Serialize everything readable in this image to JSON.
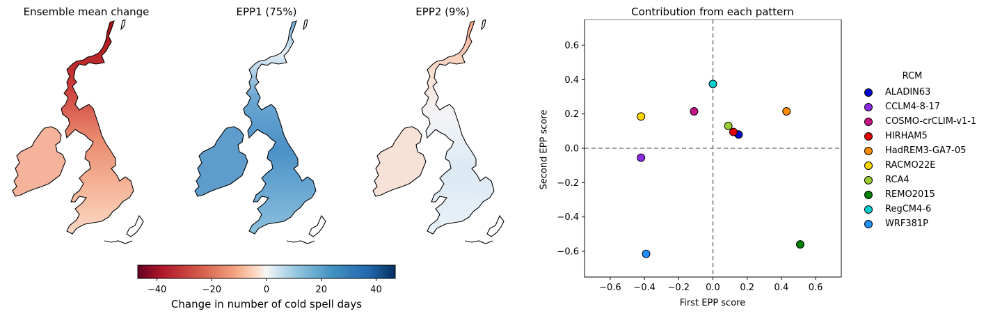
{
  "maps": [
    {
      "title": "Ensemble mean change",
      "field": "warm"
    },
    {
      "title": "EPP1 (75%)",
      "field": "blue"
    },
    {
      "title": "EPP2 (9%)",
      "field": "faint"
    }
  ],
  "colorbar": {
    "label": "Change in number of cold spell days",
    "range": [
      -47,
      47
    ],
    "ticks": [
      "−40",
      "−20",
      "0",
      "20",
      "40"
    ],
    "tick_values": [
      -40,
      -20,
      0,
      20,
      40
    ],
    "colormap": "RdBu"
  },
  "chart_data": {
    "type": "scatter",
    "title": "Contribution from each pattern",
    "xlabel": "First EPP score",
    "ylabel": "Second EPP score",
    "xlim": [
      -0.75,
      0.75
    ],
    "ylim": [
      -0.75,
      0.75
    ],
    "xticks": [
      -0.6,
      -0.4,
      -0.2,
      0.0,
      0.2,
      0.4,
      0.6
    ],
    "xtick_labels": [
      "−0.6",
      "−0.4",
      "−0.2",
      "0.0",
      "0.2",
      "0.4",
      "0.6"
    ],
    "yticks": [
      -0.6,
      -0.4,
      -0.2,
      0.0,
      0.2,
      0.4,
      0.6
    ],
    "ytick_labels": [
      "−0.6",
      "−0.4",
      "−0.2",
      "0.0",
      "0.2",
      "0.4",
      "0.6"
    ],
    "reference_lines": {
      "x": 0,
      "y": 0,
      "style": "dashed",
      "color": "#808080"
    },
    "legend": {
      "title": "RCM",
      "placement": "right outside"
    },
    "series": [
      {
        "name": "ALADIN63",
        "color": "#0000cd",
        "x": 0.15,
        "y": 0.08
      },
      {
        "name": "CCLM4-8-17",
        "color": "#8a2be2",
        "x": -0.42,
        "y": -0.055
      },
      {
        "name": "COSMO-crCLIM-v1-1",
        "color": "#c71585",
        "x": -0.11,
        "y": 0.215
      },
      {
        "name": "HIRHAM5",
        "color": "#e60000",
        "x": 0.12,
        "y": 0.095
      },
      {
        "name": "HadREM3-GA7-05",
        "color": "#ff8c00",
        "x": 0.43,
        "y": 0.215
      },
      {
        "name": "RACMO22E",
        "color": "#ffd700",
        "x": -0.42,
        "y": 0.185
      },
      {
        "name": "RCA4",
        "color": "#9acd32",
        "x": 0.09,
        "y": 0.13
      },
      {
        "name": "REMO2015",
        "color": "#008000",
        "x": 0.51,
        "y": -0.56
      },
      {
        "name": "RegCM4-6",
        "color": "#00ced1",
        "x": 0.0,
        "y": 0.375
      },
      {
        "name": "WRF381P",
        "color": "#1e90ff",
        "x": -0.39,
        "y": -0.615
      }
    ]
  }
}
